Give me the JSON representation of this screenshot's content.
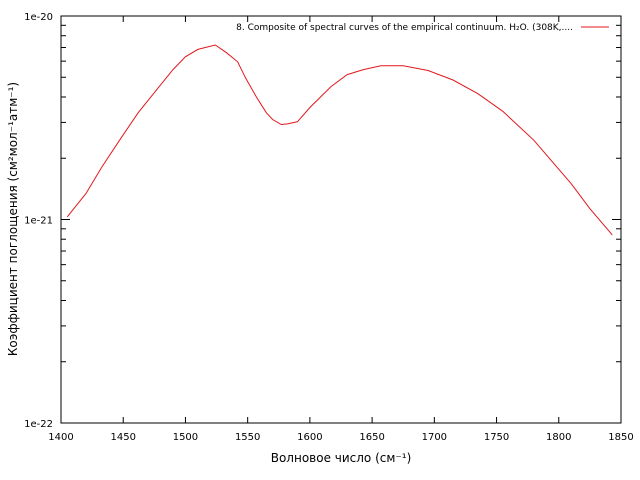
{
  "chart_data": {
    "type": "line",
    "title": "",
    "xlabel": "Волновое число (см⁻¹)",
    "ylabel": "Коэффициент поглощения (см²мол⁻¹атм⁻¹)",
    "xlim": [
      1400,
      1850
    ],
    "ylim": [
      1e-22,
      1e-20
    ],
    "yscale": "log",
    "x_ticks": [
      1400,
      1450,
      1500,
      1550,
      1600,
      1650,
      1700,
      1750,
      1800,
      1850
    ],
    "x_tick_labels": [
      "1400",
      "1450",
      "1500",
      "1550",
      "1600",
      "1650",
      "1700",
      "1750",
      "1800",
      "1850"
    ],
    "y_ticks": [
      1e-22,
      1e-21,
      1e-20
    ],
    "y_tick_labels": [
      "1e-22",
      "1e-21",
      "1e-20"
    ],
    "grid": false,
    "legend_position": "top-right",
    "series": [
      {
        "name": "8. Composite of spectral curves of the empirical continuum. H₂O. (308K,....",
        "color": "#e3171e",
        "x": [
          1405,
          1420,
          1433,
          1447,
          1462,
          1477,
          1490,
          1500,
          1510,
          1518,
          1524,
          1533,
          1542,
          1548,
          1557,
          1565,
          1570,
          1577,
          1582,
          1590,
          1600,
          1617,
          1630,
          1643,
          1657,
          1675,
          1695,
          1715,
          1735,
          1755,
          1780,
          1810,
          1825,
          1843
        ],
        "y": [
          1.03e-21,
          1.34e-21,
          1.82e-21,
          2.45e-21,
          3.35e-21,
          4.35e-21,
          5.45e-21,
          6.3e-21,
          6.85e-21,
          7.05e-21,
          7.2e-21,
          6.6e-21,
          5.95e-21,
          5e-21,
          4e-21,
          3.35e-21,
          3.1e-21,
          2.93e-21,
          2.95e-21,
          3.02e-21,
          3.55e-21,
          4.5e-21,
          5.15e-21,
          5.45e-21,
          5.7e-21,
          5.7e-21,
          5.4e-21,
          4.85e-21,
          4.15e-21,
          3.4e-21,
          2.45e-21,
          1.5e-21,
          1.13e-21,
          8.4e-22
        ]
      }
    ]
  }
}
